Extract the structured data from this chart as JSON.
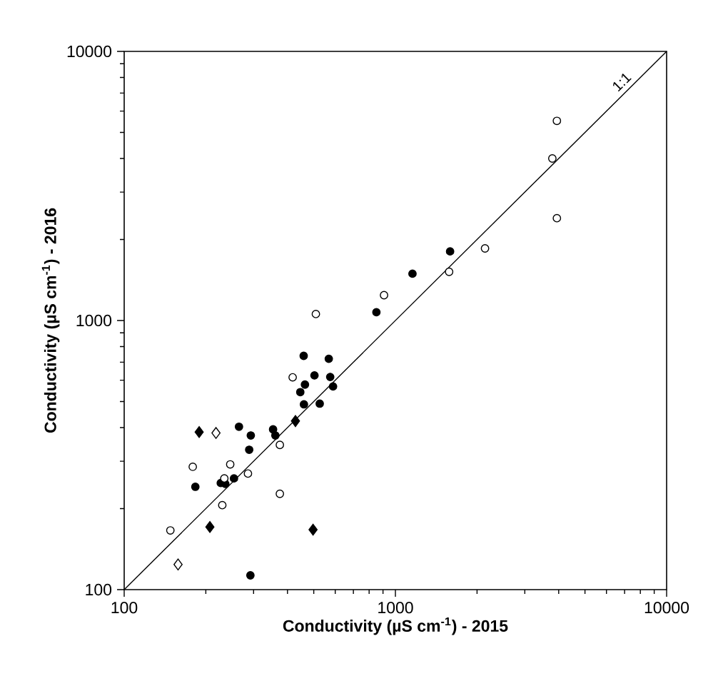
{
  "chart_data": {
    "type": "scatter",
    "xlabel": "Conductivity (µS cm$^{-1}$) - 2015",
    "ylabel": "Conductivity (µS cm$^{-1}$) - 2016",
    "log": "xy",
    "xlim": [
      100,
      10000
    ],
    "ylim": [
      100,
      10000
    ],
    "xticks": [
      100,
      1000,
      10000
    ],
    "yticks": [
      100,
      1000,
      10000
    ],
    "grid": false,
    "series": [
      {
        "marker": "circle",
        "color": "#000000",
        "x": [
          183,
          227,
          236,
          254,
          265,
          293,
          289,
          354,
          361,
          292,
          460,
          526,
          446,
          464,
          589,
          503,
          575,
          459,
          568,
          851,
          1156,
          1591
        ],
        "values": [
          241,
          249,
          247,
          259,
          403,
          374,
          331,
          394,
          374,
          113,
          488,
          491,
          542,
          578,
          569,
          625,
          617,
          739,
          721,
          1074,
          1493,
          1807
        ]
      },
      {
        "marker": "circle",
        "color": "#ffffff",
        "x": [
          179,
          246,
          234,
          286,
          375,
          375,
          230,
          148,
          418,
          509,
          908,
          1578,
          2140,
          3940,
          3790,
          3940
        ],
        "values": [
          286,
          292,
          259,
          270,
          345,
          227,
          206,
          166,
          615,
          1057,
          1242,
          1517,
          1853,
          5520,
          4000,
          2400
        ]
      },
      {
        "marker": "diamond",
        "color": "#000000",
        "x": [
          189,
          207,
          497,
          428
        ],
        "values": [
          385,
          171,
          167,
          423
        ]
      },
      {
        "marker": "diamond",
        "color": "#ffffff",
        "x": [
          218,
          158
        ],
        "values": [
          382,
          124
        ]
      },
      {
        "type": "line",
        "name": "1:1",
        "color": "#000000",
        "x": [
          100,
          10000
        ],
        "values": [
          100,
          10000
        ]
      }
    ]
  }
}
